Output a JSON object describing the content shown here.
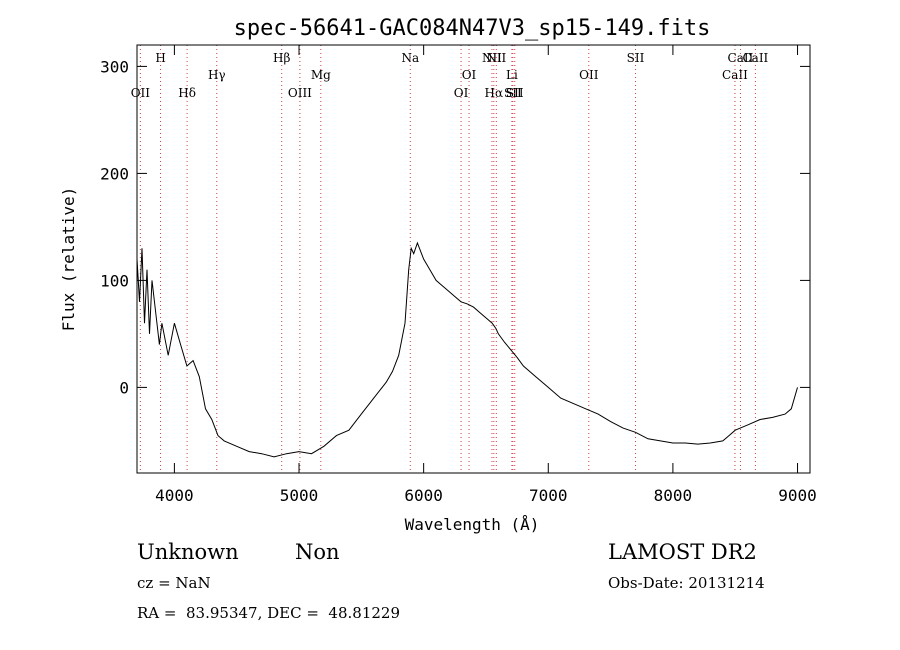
{
  "chart_data": {
    "type": "line",
    "title": "spec-56641-GAC084N47V3_sp15-149.fits",
    "xlabel": "Wavelength (Å)",
    "ylabel": "Flux (relative)",
    "xlim": [
      3700,
      9100
    ],
    "ylim": [
      -80,
      320
    ],
    "xticks": [
      4000,
      5000,
      6000,
      7000,
      8000,
      9000
    ],
    "xtick_labels": [
      "4000",
      "5000",
      "6000",
      "7000",
      "8000",
      "9000"
    ],
    "yticks": [
      0,
      100,
      200,
      300
    ],
    "ytick_labels": [
      "0",
      "100",
      "200",
      "300"
    ],
    "grid": false,
    "line_color": "#000000",
    "marker_color": "#d04040",
    "line_markers": [
      {
        "label": "OII",
        "x": 3727,
        "row": 3
      },
      {
        "label": "H",
        "x": 3889,
        "row": 1
      },
      {
        "label": "Hδ",
        "x": 4102,
        "row": 3
      },
      {
        "label": "Hγ",
        "x": 4340,
        "row": 2
      },
      {
        "label": "Hβ",
        "x": 4861,
        "row": 1
      },
      {
        "label": "OIII",
        "x": 5007,
        "row": 3
      },
      {
        "label": "Mg",
        "x": 5175,
        "row": 2
      },
      {
        "label": "Na",
        "x": 5893,
        "row": 1
      },
      {
        "label": "OI",
        "x": 6300,
        "row": 3
      },
      {
        "label": "OI",
        "x": 6364,
        "row": 2
      },
      {
        "label": "NII",
        "x": 6548,
        "row": 1
      },
      {
        "label": "Hα",
        "x": 6563,
        "row": 3
      },
      {
        "label": "NII",
        "x": 6583,
        "row": 1
      },
      {
        "label": "Li",
        "x": 6708,
        "row": 2
      },
      {
        "label": "SII",
        "x": 6716,
        "row": 3
      },
      {
        "label": "SII",
        "x": 6731,
        "row": 3
      },
      {
        "label": "OII",
        "x": 7325,
        "row": 2
      },
      {
        "label": "SII",
        "x": 7700,
        "row": 1
      },
      {
        "label": "CaII",
        "x": 8498,
        "row": 2
      },
      {
        "label": "CaII",
        "x": 8542,
        "row": 1
      },
      {
        "label": "CaII",
        "x": 8662,
        "row": 1
      }
    ],
    "series": [
      {
        "x": [
          3700,
          3720,
          3740,
          3760,
          3780,
          3800,
          3820,
          3850,
          3880,
          3900,
          3950,
          4000,
          4050,
          4100,
          4150,
          4200,
          4250,
          4300,
          4350,
          4400,
          4500,
          4600,
          4700,
          4800,
          4900,
          5000,
          5100,
          5200,
          5300,
          5400,
          5500,
          5600,
          5700,
          5750,
          5800,
          5850,
          5880,
          5900,
          5920,
          5950,
          6000,
          6050,
          6100,
          6150,
          6200,
          6250,
          6300,
          6350,
          6400,
          6450,
          6500,
          6550,
          6580,
          6600,
          6650,
          6700,
          6750,
          6800,
          6900,
          7000,
          7100,
          7200,
          7300,
          7400,
          7500,
          7600,
          7700,
          7800,
          7900,
          8000,
          8100,
          8200,
          8300,
          8400,
          8450,
          8500,
          8600,
          8700,
          8800,
          8900,
          8950,
          9000
        ],
        "y": [
          120,
          80,
          130,
          60,
          110,
          50,
          100,
          70,
          40,
          60,
          30,
          60,
          40,
          20,
          25,
          10,
          -20,
          -30,
          -45,
          -50,
          -55,
          -60,
          -62,
          -65,
          -62,
          -60,
          -62,
          -55,
          -45,
          -40,
          -25,
          -10,
          5,
          15,
          30,
          60,
          110,
          130,
          125,
          135,
          120,
          110,
          100,
          95,
          90,
          85,
          80,
          78,
          75,
          70,
          65,
          60,
          55,
          50,
          42,
          35,
          28,
          20,
          10,
          0,
          -10,
          -15,
          -20,
          -25,
          -32,
          -38,
          -42,
          -48,
          -50,
          -52,
          -52,
          -53,
          -52,
          -50,
          -45,
          -40,
          -35,
          -30,
          -28,
          -25,
          -20,
          0
        ]
      }
    ]
  },
  "info": {
    "class_label": "Unknown",
    "subclass_label": "Non",
    "cz_line": "cz = NaN",
    "radec_line": "RA =  83.95347, DEC =  48.81229",
    "survey_label": "LAMOST DR2",
    "obs_date_line": "Obs-Date: 20131214"
  }
}
